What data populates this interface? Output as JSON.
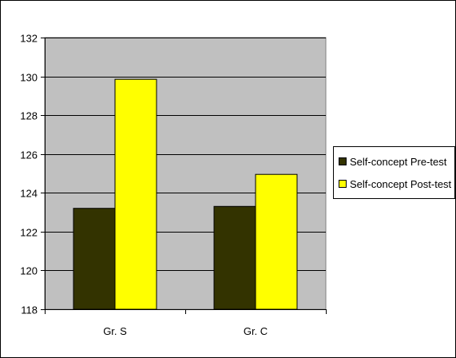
{
  "chart_data": {
    "type": "bar",
    "categories": [
      "Gr. S",
      "Gr. C"
    ],
    "series": [
      {
        "name": "Self-concept Pre-test",
        "values": [
          123.2,
          123.3
        ],
        "color": "#333300"
      },
      {
        "name": "Self-concept Post-test",
        "values": [
          129.85,
          124.95
        ],
        "color": "#FFFF00"
      }
    ],
    "ylim": [
      118,
      132
    ],
    "yticks": [
      118,
      120,
      122,
      124,
      126,
      128,
      130,
      132
    ],
    "ytick_labels": [
      "118",
      "120",
      "122",
      "124",
      "126",
      "128",
      "130",
      "132"
    ],
    "grid": true,
    "legend_position": "right",
    "plot_background": "#C0C0C0"
  }
}
